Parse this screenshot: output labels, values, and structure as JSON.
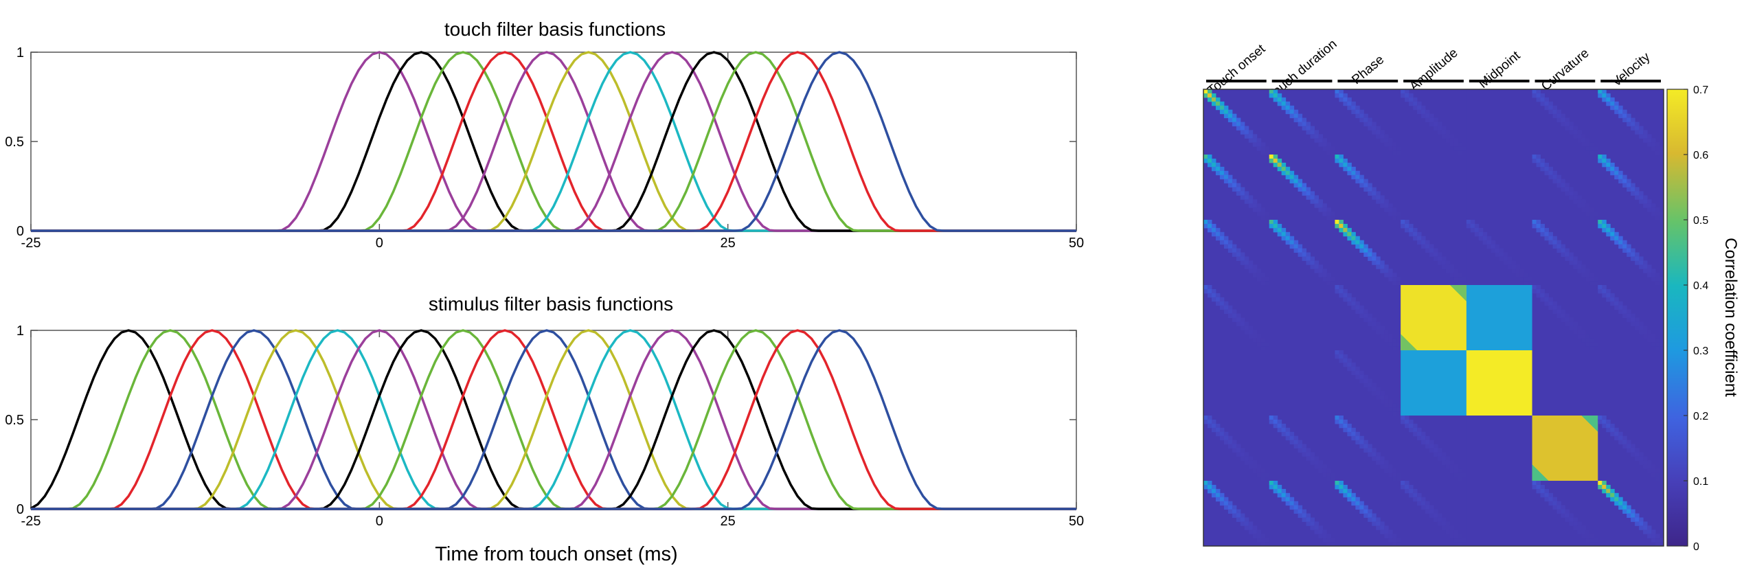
{
  "figure": {
    "xlabel": "Time from touch onset (ms)"
  },
  "colors": {
    "cycle": [
      "#9b3f9b",
      "#000000",
      "#6ab63a",
      "#e3242b",
      "#2e4fa0",
      "#bdbd2a",
      "#1cb8c3"
    ],
    "axis": "#555555",
    "text": "#1a1a1a"
  },
  "chart_data": [
    {
      "type": "line",
      "title": "touch filter basis functions",
      "xlim": [
        -25,
        50
      ],
      "ylim": [
        0,
        1
      ],
      "xticks": [
        {
          "value": -25,
          "label": "-25"
        },
        {
          "value": 0,
          "label": "0"
        },
        {
          "value": 25,
          "label": "25"
        },
        {
          "value": 50,
          "label": "50"
        }
      ],
      "yticks": [
        {
          "value": 0,
          "label": "0"
        },
        {
          "value": 0.5,
          "label": "0.5"
        },
        {
          "value": 1,
          "label": "1"
        }
      ],
      "basis_shape": "raised cosine",
      "basis_width_ms": 14.5,
      "peaks_ms": [
        0,
        3,
        6,
        9,
        12,
        15,
        18,
        21,
        24,
        27,
        30,
        33
      ],
      "series_colors": [
        "#9b3f9b",
        "#000000",
        "#6ab63a",
        "#e3242b",
        "#9b3f9b",
        "#bdbd2a",
        "#1cb8c3",
        "#9b3f9b",
        "#000000",
        "#6ab63a",
        "#e3242b",
        "#2e4fa0"
      ]
    },
    {
      "type": "line",
      "title": "stimulus filter basis functions",
      "xlim": [
        -25,
        50
      ],
      "ylim": [
        0,
        1
      ],
      "xticks": [
        {
          "value": -25,
          "label": "-25"
        },
        {
          "value": 0,
          "label": "0"
        },
        {
          "value": 25,
          "label": "25"
        },
        {
          "value": 50,
          "label": "50"
        }
      ],
      "yticks": [
        {
          "value": 0,
          "label": "0"
        },
        {
          "value": 0.5,
          "label": "0.5"
        },
        {
          "value": 1,
          "label": "1"
        }
      ],
      "basis_shape": "raised cosine",
      "basis_width_ms": 14.5,
      "peaks_ms": [
        -18,
        -15,
        -12,
        -9,
        -6,
        -3,
        0,
        3,
        6,
        9,
        12,
        15,
        18,
        21,
        24,
        27,
        30,
        33
      ],
      "series_colors": [
        "#000000",
        "#6ab63a",
        "#e3242b",
        "#2e4fa0",
        "#bdbd2a",
        "#1cb8c3",
        "#9b3f9b",
        "#000000",
        "#6ab63a",
        "#e3242b",
        "#2e4fa0",
        "#bdbd2a",
        "#1cb8c3",
        "#9b3f9b",
        "#000000",
        "#6ab63a",
        "#e3242b",
        "#2e4fa0"
      ]
    },
    {
      "type": "heatmap",
      "groups": [
        {
          "label": "Touch onset",
          "size": 1
        },
        {
          "label": "Touch duration",
          "size": 1
        },
        {
          "label": "Phase",
          "size": 1
        },
        {
          "label": "Amplitude",
          "size": 1
        },
        {
          "label": "Midpoint",
          "size": 1
        },
        {
          "label": "Curvature",
          "size": 1
        },
        {
          "label": "Velocity",
          "size": 1
        }
      ],
      "colorbar": {
        "label": "Correlation coefficient",
        "min": 0,
        "max": 0.7,
        "ticks": [
          {
            "value": 0,
            "label": "0"
          },
          {
            "value": 0.1,
            "label": "0.1"
          },
          {
            "value": 0.2,
            "label": "0.2"
          },
          {
            "value": 0.3,
            "label": "0.3"
          },
          {
            "value": 0.4,
            "label": "0.4"
          },
          {
            "value": 0.5,
            "label": "0.5"
          },
          {
            "value": 0.6,
            "label": "0.6"
          },
          {
            "value": 0.7,
            "label": "0.7"
          }
        ]
      },
      "blocks": [
        {
          "row": 0,
          "col": 0,
          "kind": "diag",
          "value": 0.7
        },
        {
          "row": 0,
          "col": 1,
          "kind": "diag",
          "value": 0.45
        },
        {
          "row": 0,
          "col": 2,
          "kind": "diag",
          "value": 0.22
        },
        {
          "row": 0,
          "col": 3,
          "kind": "diag",
          "value": 0.14
        },
        {
          "row": 0,
          "col": 4,
          "kind": "flat",
          "value": 0.08
        },
        {
          "row": 0,
          "col": 5,
          "kind": "diag",
          "value": 0.15
        },
        {
          "row": 0,
          "col": 6,
          "kind": "diag",
          "value": 0.35
        },
        {
          "row": 1,
          "col": 0,
          "kind": "diag",
          "value": 0.45
        },
        {
          "row": 1,
          "col": 1,
          "kind": "diag",
          "value": 0.7
        },
        {
          "row": 1,
          "col": 2,
          "kind": "diag",
          "value": 0.4
        },
        {
          "row": 1,
          "col": 3,
          "kind": "flat",
          "value": 0.08
        },
        {
          "row": 1,
          "col": 4,
          "kind": "flat",
          "value": 0.08
        },
        {
          "row": 1,
          "col": 5,
          "kind": "diag",
          "value": 0.16
        },
        {
          "row": 1,
          "col": 6,
          "kind": "diag",
          "value": 0.38
        },
        {
          "row": 2,
          "col": 0,
          "kind": "diag",
          "value": 0.3
        },
        {
          "row": 2,
          "col": 1,
          "kind": "diag",
          "value": 0.45
        },
        {
          "row": 2,
          "col": 2,
          "kind": "diag",
          "value": 0.7
        },
        {
          "row": 2,
          "col": 3,
          "kind": "diag",
          "value": 0.16
        },
        {
          "row": 2,
          "col": 4,
          "kind": "diag",
          "value": 0.13
        },
        {
          "row": 2,
          "col": 5,
          "kind": "diag",
          "value": 0.22
        },
        {
          "row": 2,
          "col": 6,
          "kind": "diag",
          "value": 0.42
        },
        {
          "row": 3,
          "col": 0,
          "kind": "diag",
          "value": 0.17
        },
        {
          "row": 3,
          "col": 1,
          "kind": "flat",
          "value": 0.08
        },
        {
          "row": 3,
          "col": 2,
          "kind": "diag",
          "value": 0.14
        },
        {
          "row": 3,
          "col": 3,
          "kind": "high",
          "value": 0.68
        },
        {
          "row": 3,
          "col": 4,
          "kind": "flat",
          "value": 0.32
        },
        {
          "row": 3,
          "col": 5,
          "kind": "diag",
          "value": 0.12
        },
        {
          "row": 3,
          "col": 6,
          "kind": "diag",
          "value": 0.14
        },
        {
          "row": 4,
          "col": 0,
          "kind": "flat",
          "value": 0.08
        },
        {
          "row": 4,
          "col": 1,
          "kind": "flat",
          "value": 0.08
        },
        {
          "row": 4,
          "col": 2,
          "kind": "diag",
          "value": 0.13
        },
        {
          "row": 4,
          "col": 3,
          "kind": "flat",
          "value": 0.32
        },
        {
          "row": 4,
          "col": 4,
          "kind": "flat",
          "value": 0.7
        },
        {
          "row": 4,
          "col": 5,
          "kind": "flat",
          "value": 0.08
        },
        {
          "row": 4,
          "col": 6,
          "kind": "flat",
          "value": 0.08
        },
        {
          "row": 5,
          "col": 0,
          "kind": "diag",
          "value": 0.16
        },
        {
          "row": 5,
          "col": 1,
          "kind": "diag",
          "value": 0.2
        },
        {
          "row": 5,
          "col": 2,
          "kind": "diag",
          "value": 0.24
        },
        {
          "row": 5,
          "col": 3,
          "kind": "diag",
          "value": 0.14
        },
        {
          "row": 5,
          "col": 4,
          "kind": "flat",
          "value": 0.08
        },
        {
          "row": 5,
          "col": 5,
          "kind": "high",
          "value": 0.62
        },
        {
          "row": 5,
          "col": 6,
          "kind": "diag",
          "value": 0.16
        },
        {
          "row": 6,
          "col": 0,
          "kind": "diag",
          "value": 0.35
        },
        {
          "row": 6,
          "col": 1,
          "kind": "diag",
          "value": 0.4
        },
        {
          "row": 6,
          "col": 2,
          "kind": "diag",
          "value": 0.42
        },
        {
          "row": 6,
          "col": 3,
          "kind": "diag",
          "value": 0.14
        },
        {
          "row": 6,
          "col": 4,
          "kind": "flat",
          "value": 0.08
        },
        {
          "row": 6,
          "col": 5,
          "kind": "diag",
          "value": 0.16
        },
        {
          "row": 6,
          "col": 6,
          "kind": "diag",
          "value": 0.7
        }
      ]
    }
  ]
}
